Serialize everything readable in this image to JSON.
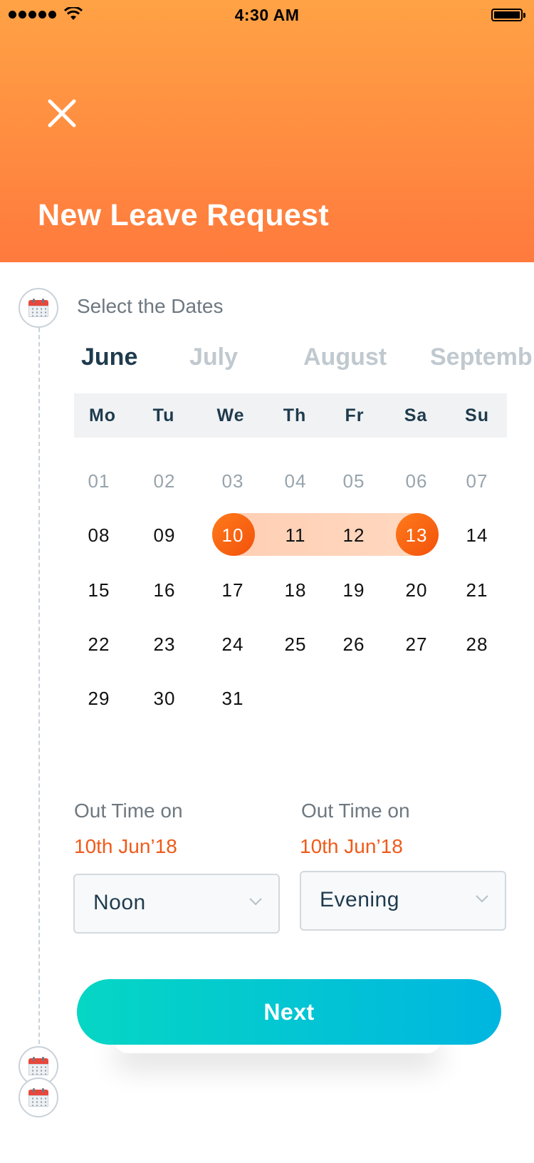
{
  "status_bar": {
    "time": "4:30 AM"
  },
  "header": {
    "title": "New Leave Request"
  },
  "step": {
    "label": "Select the Dates"
  },
  "months": [
    "June",
    "July",
    "August",
    "Septemb"
  ],
  "weekdays": [
    "Mo",
    "Tu",
    "We",
    "Th",
    "Fr",
    "Sa",
    "Su"
  ],
  "days": {
    "row1": [
      "01",
      "02",
      "03",
      "04",
      "05",
      "06",
      "07"
    ],
    "row2": [
      "08",
      "09",
      "10",
      "11",
      "12",
      "13",
      "14"
    ],
    "row3": [
      "15",
      "16",
      "17",
      "18",
      "19",
      "20",
      "21"
    ],
    "row4": [
      "22",
      "23",
      "24",
      "25",
      "26",
      "27",
      "28"
    ],
    "row5": [
      "29",
      "30",
      "31"
    ]
  },
  "selection": {
    "start": "10",
    "end": "13"
  },
  "out_time": [
    {
      "label": "Out Time on",
      "date": "10th Jun’18",
      "value": "Noon"
    },
    {
      "label": "Out Time on",
      "date": "10th Jun’18",
      "value": "Evening"
    }
  ],
  "next_button": {
    "label": "Next"
  },
  "colors": {
    "header_top": "#ffa245",
    "header_bottom": "#ff7a3d",
    "accent": "#f05a1a",
    "button_start": "#06d6c4",
    "button_end": "#00b6e0"
  },
  "icons": {
    "close": "close-icon",
    "calendar": "calendar-icon",
    "chevron": "chevron-down-icon"
  }
}
